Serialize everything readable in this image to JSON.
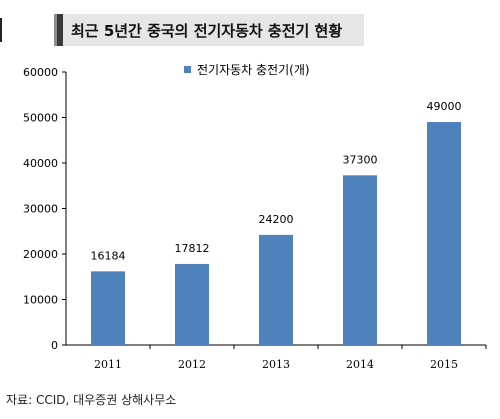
{
  "chart_data": {
    "type": "bar",
    "title": "최근 5년간 중국의 전기자동차 충전기 현황",
    "categories": [
      "2011",
      "2012",
      "2013",
      "2014",
      "2015"
    ],
    "series": [
      {
        "name": "전기자동차 충전기(개)",
        "values": [
          16184,
          17812,
          24200,
          37300,
          49000
        ]
      }
    ],
    "ylim": [
      0,
      60000
    ],
    "yticks": [
      0,
      10000,
      20000,
      30000,
      40000,
      50000,
      60000
    ],
    "bar_color": "#4f81bd",
    "grid": false,
    "legend_position": "top-center",
    "data_labels": true
  },
  "source": "자료: CCID, 대우증권 상해사무소"
}
